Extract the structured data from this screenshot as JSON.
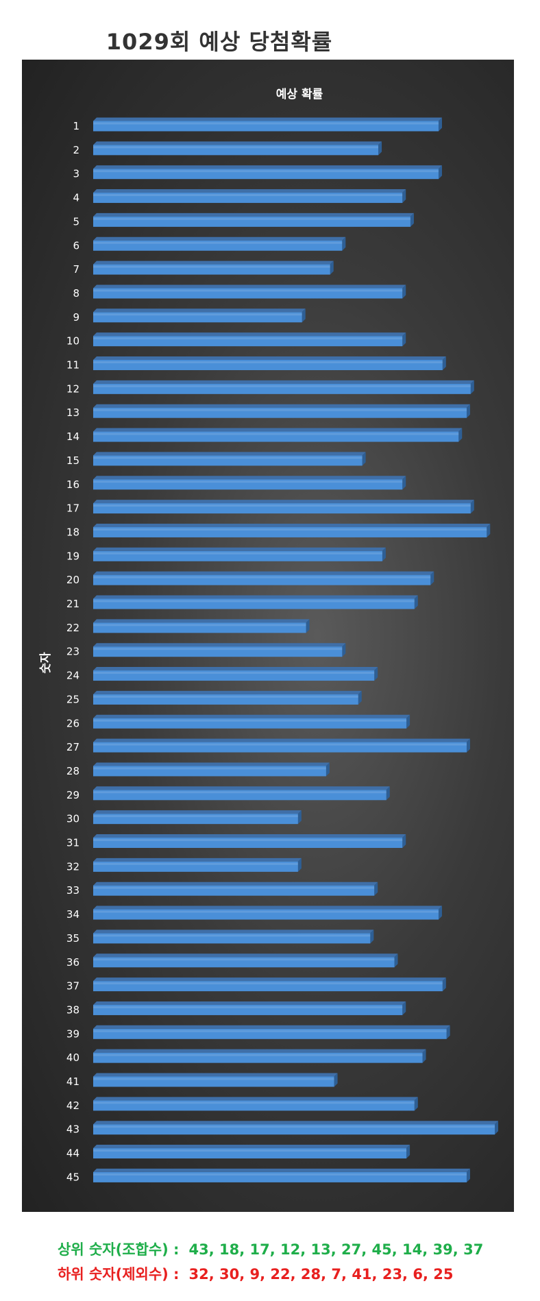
{
  "title": "1029회 예상 당첨확률",
  "chart_data": {
    "type": "bar",
    "orientation": "horizontal",
    "title": "예상 확률",
    "ylabel": "숫자",
    "xlabel": "",
    "grid": false,
    "legend": "none",
    "xlim": [
      0,
      100
    ],
    "colors": {
      "bar": "#4a8fd8",
      "bar_top": "#3f6fa8",
      "bar_side": "#2e5f95",
      "text": "#ffffff"
    },
    "categories": [
      "1",
      "2",
      "3",
      "4",
      "5",
      "6",
      "7",
      "8",
      "9",
      "10",
      "11",
      "12",
      "13",
      "14",
      "15",
      "16",
      "17",
      "18",
      "19",
      "20",
      "21",
      "22",
      "23",
      "24",
      "25",
      "26",
      "27",
      "28",
      "29",
      "30",
      "31",
      "32",
      "33",
      "34",
      "35",
      "36",
      "37",
      "38",
      "39",
      "40",
      "41",
      "42",
      "43",
      "44",
      "45"
    ],
    "values": [
      86,
      71,
      86,
      77,
      79,
      62,
      59,
      77,
      52,
      77,
      87,
      94,
      93,
      91,
      67,
      77,
      94,
      98,
      72,
      84,
      80,
      53,
      62,
      70,
      66,
      78,
      93,
      58,
      73,
      51,
      77,
      51,
      70,
      86,
      69,
      75,
      87,
      77,
      88,
      82,
      60,
      80,
      100,
      78,
      93
    ]
  },
  "summary": {
    "top_label": "상위 숫자(조합수) :",
    "top_values": "43, 18, 17, 12, 13, 27, 45, 14, 39, 37",
    "bottom_label": "하위 숫자(제외수) :",
    "bottom_values": "32, 30, 9, 22, 28, 7, 41, 23, 6, 25"
  }
}
